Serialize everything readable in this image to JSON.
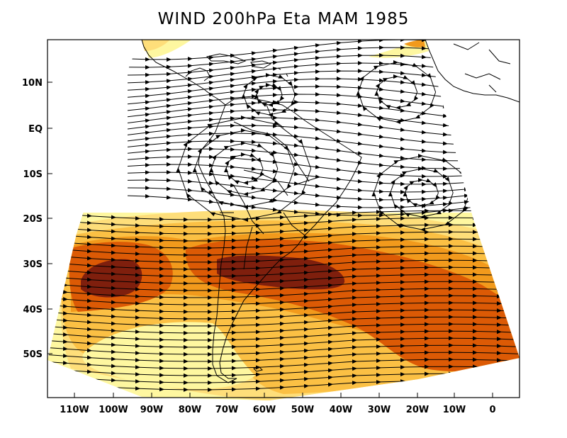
{
  "title": "WIND 200hPa Eta MAM 1985",
  "lat_labels": [
    "10N",
    "EQ",
    "10S",
    "20S",
    "30S",
    "40S",
    "50S"
  ],
  "lon_labels": [
    "110W",
    "100W",
    "90W",
    "80W",
    "70W",
    "60W",
    "50W",
    "40W",
    "30W",
    "20W",
    "10W",
    "0"
  ],
  "shading_colors": {
    "pale_yellow": "#fef7a0",
    "yellow": "#fede7a",
    "light_orange": "#fbc044",
    "orange": "#f29a1c",
    "dark_orange": "#dc5a05",
    "brown": "#7f1f0d"
  },
  "coastline_color": "#000000",
  "streamline_color": "#000000"
}
